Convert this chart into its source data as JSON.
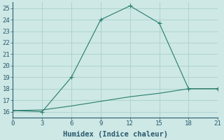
{
  "xlabel": "Humidex (Indice chaleur)",
  "line1_x": [
    0,
    3,
    6,
    9,
    12,
    15,
    18,
    21
  ],
  "line1_y": [
    16.1,
    16.0,
    19.0,
    24.0,
    25.2,
    23.7,
    18.0,
    18.0
  ],
  "line2_x": [
    0,
    3,
    6,
    9,
    12,
    15,
    18,
    21
  ],
  "line2_y": [
    16.1,
    16.15,
    16.5,
    16.9,
    17.3,
    17.6,
    18.0,
    18.0
  ],
  "line_color": "#2a7d6b",
  "xlim": [
    0,
    21
  ],
  "ylim": [
    15.5,
    25.5
  ],
  "xticks": [
    0,
    3,
    6,
    9,
    12,
    15,
    18,
    21
  ],
  "yticks": [
    16,
    17,
    18,
    19,
    20,
    21,
    22,
    23,
    24,
    25
  ],
  "background_color": "#cde8e5",
  "grid_color": "#aad0cc",
  "font_color": "#2a5a6e",
  "xlabel_fontsize": 7.5,
  "tick_fontsize": 6.5
}
